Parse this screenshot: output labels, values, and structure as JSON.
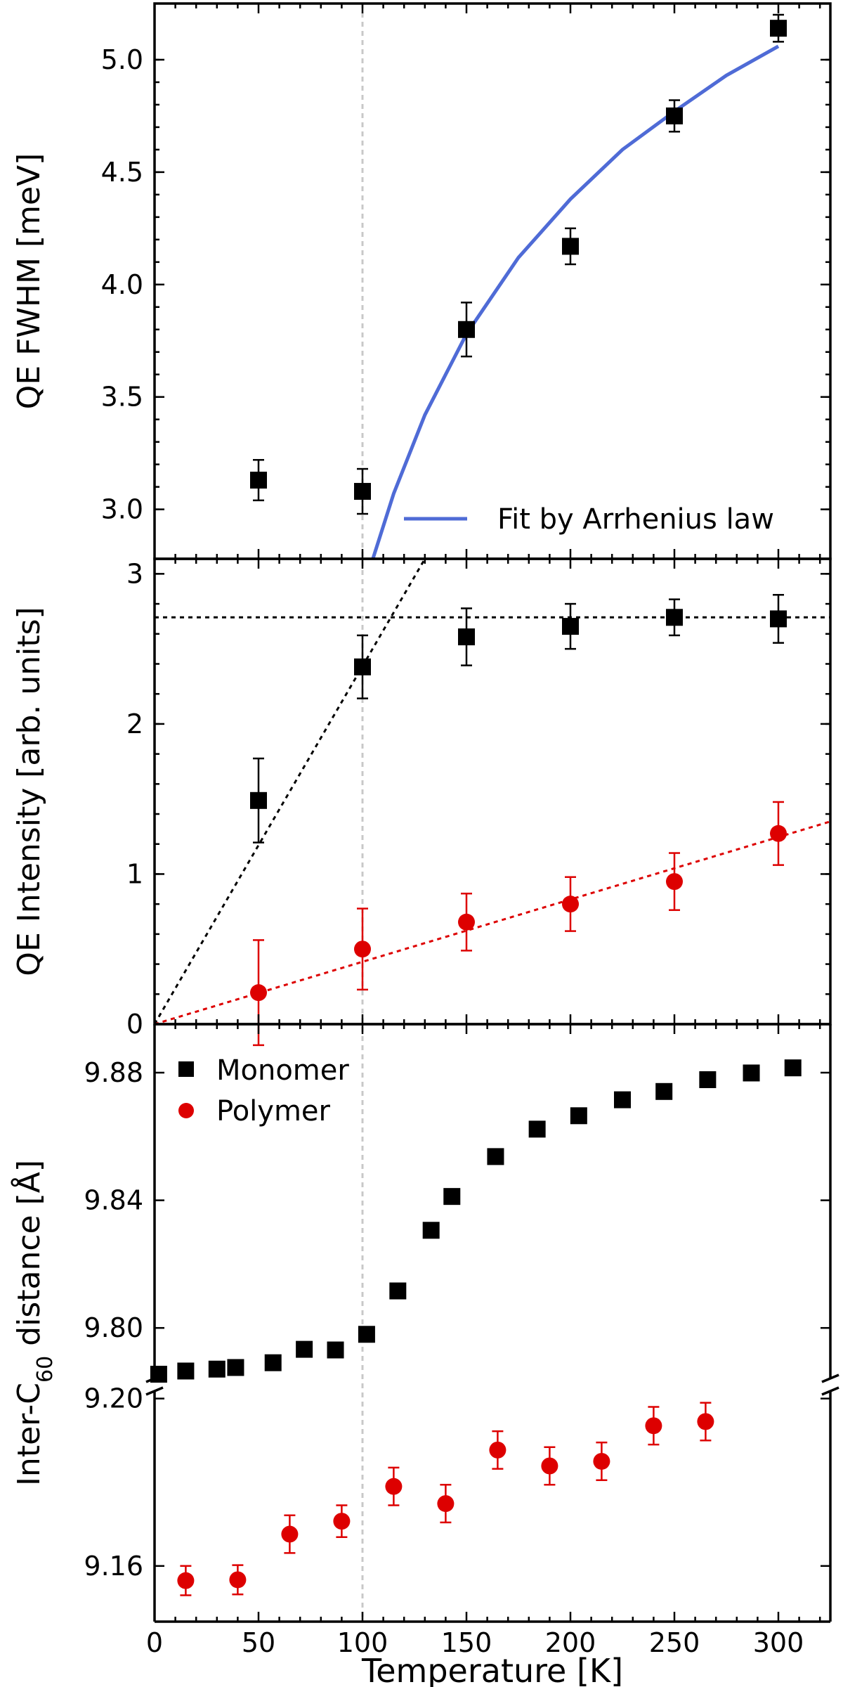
{
  "chart_data": [
    {
      "type": "scatter",
      "panel": "top",
      "ylabel": "QE FWHM [meV]",
      "ylim": [
        2.78,
        5.25
      ],
      "xlim": [
        0,
        325
      ],
      "yticks": [
        3.0,
        3.5,
        4.0,
        4.5,
        5.0
      ],
      "ytick_labels": [
        "3.0",
        "3.5",
        "4.0",
        "4.5",
        "5.0"
      ],
      "series": [
        {
          "marker": "square",
          "color": "#000000",
          "points": [
            {
              "x": 50,
              "y": 3.13,
              "err": 0.09
            },
            {
              "x": 100,
              "y": 3.08,
              "err": 0.1
            },
            {
              "x": 150,
              "y": 3.8,
              "err": 0.12
            },
            {
              "x": 200,
              "y": 4.17,
              "err": 0.08
            },
            {
              "x": 250,
              "y": 4.75,
              "err": 0.07
            },
            {
              "x": 300,
              "y": 5.14,
              "err": 0.06
            }
          ]
        }
      ],
      "fit": {
        "name": "Fit by Arrhenius law",
        "color": "#4f6bd6",
        "points": [
          [
            105,
            2.78
          ],
          [
            115,
            3.07
          ],
          [
            130,
            3.42
          ],
          [
            150,
            3.78
          ],
          [
            175,
            4.12
          ],
          [
            200,
            4.38
          ],
          [
            225,
            4.6
          ],
          [
            250,
            4.77
          ],
          [
            275,
            4.93
          ],
          [
            300,
            5.06
          ]
        ]
      },
      "legend_position": "bottom-right"
    },
    {
      "type": "scatter",
      "panel": "middle",
      "ylabel": "QE Intensity [arb. units]",
      "ylim": [
        0,
        3.1
      ],
      "xlim": [
        0,
        325
      ],
      "yticks": [
        0,
        1,
        2,
        3
      ],
      "ytick_labels": [
        "0",
        "1",
        "2",
        "3"
      ],
      "series": [
        {
          "marker": "square",
          "color": "#000000",
          "points": [
            {
              "x": 50,
              "y": 1.49,
              "err": 0.28
            },
            {
              "x": 100,
              "y": 2.38,
              "err": 0.21
            },
            {
              "x": 150,
              "y": 2.58,
              "err": 0.19
            },
            {
              "x": 200,
              "y": 2.65,
              "err": 0.15
            },
            {
              "x": 250,
              "y": 2.71,
              "err": 0.12
            },
            {
              "x": 300,
              "y": 2.7,
              "err": 0.16
            }
          ]
        },
        {
          "marker": "circle",
          "color": "#dd0000",
          "points": [
            {
              "x": 50,
              "y": 0.21,
              "err": 0.35
            },
            {
              "x": 100,
              "y": 0.5,
              "err": 0.27
            },
            {
              "x": 150,
              "y": 0.68,
              "err": 0.19
            },
            {
              "x": 200,
              "y": 0.8,
              "err": 0.18
            },
            {
              "x": 250,
              "y": 0.95,
              "err": 0.19
            },
            {
              "x": 300,
              "y": 1.27,
              "err": 0.21
            }
          ]
        }
      ],
      "guides": [
        {
          "color": "#000000",
          "from": [
            0,
            0
          ],
          "to": [
            130,
            3.1
          ]
        },
        {
          "color": "#000000",
          "from": [
            0,
            2.71
          ],
          "to": [
            325,
            2.71
          ]
        },
        {
          "color": "#dd0000",
          "from": [
            0,
            0
          ],
          "to": [
            325,
            1.35
          ]
        }
      ]
    },
    {
      "type": "scatter",
      "panel": "bottom",
      "broken_axis": true,
      "ylabel": "Inter-C60 distance [Å]",
      "ylabel_parts": [
        "Inter-C",
        "60",
        " distance [Å]"
      ],
      "xlabel": "Temperature [K]",
      "xlim": [
        0,
        325
      ],
      "xticks": [
        0,
        50,
        100,
        150,
        200,
        250,
        300
      ],
      "xtick_labels": [
        "0",
        "50",
        "100",
        "150",
        "200",
        "250",
        "300"
      ],
      "upper_segment": {
        "ylim": [
          9.7822,
          9.8952
        ],
        "yticks": [
          9.8,
          9.84,
          9.88
        ],
        "ytick_labels": [
          "9.80",
          "9.84",
          "9.88"
        ]
      },
      "lower_segment": {
        "ylim": [
          9.1467,
          9.2033
        ],
        "yticks": [
          9.16,
          9.2
        ],
        "ytick_labels": [
          "9.16",
          "9.20"
        ]
      },
      "series": [
        {
          "name": "Monomer",
          "marker": "square",
          "color": "#000000",
          "points": [
            {
              "x": 2,
              "y": 9.7855,
              "err": 0.0015
            },
            {
              "x": 15,
              "y": 9.7865,
              "err": 0.0015
            },
            {
              "x": 30,
              "y": 9.7871,
              "err": 0.0015
            },
            {
              "x": 39,
              "y": 9.7876,
              "err": 0.0022
            },
            {
              "x": 57,
              "y": 9.7891,
              "err": 0.0022
            },
            {
              "x": 72,
              "y": 9.7933,
              "err": 0.0022
            },
            {
              "x": 87,
              "y": 9.7931,
              "err": 0.0022
            },
            {
              "x": 102,
              "y": 9.798,
              "err": 0.0022
            },
            {
              "x": 117,
              "y": 9.8116,
              "err": 0.0022
            },
            {
              "x": 133,
              "y": 9.8306,
              "err": 0.0022
            },
            {
              "x": 143,
              "y": 9.8412,
              "err": 0.0022
            },
            {
              "x": 164,
              "y": 9.8537,
              "err": 0.0022
            },
            {
              "x": 184,
              "y": 9.8623,
              "err": 0.0022
            },
            {
              "x": 204,
              "y": 9.8665,
              "err": 0.0022
            },
            {
              "x": 225,
              "y": 9.8715,
              "err": 0.0022
            },
            {
              "x": 245,
              "y": 9.8741,
              "err": 0.0022
            },
            {
              "x": 266,
              "y": 9.8778,
              "err": 0.0022
            },
            {
              "x": 287,
              "y": 9.8799,
              "err": 0.0022
            },
            {
              "x": 307,
              "y": 9.8815,
              "err": 0.0022
            }
          ]
        },
        {
          "name": "Polymer",
          "marker": "circle",
          "color": "#dd0000",
          "points": [
            {
              "x": 15,
              "y": 9.1565,
              "err": 0.0035
            },
            {
              "x": 40,
              "y": 9.1567,
              "err": 0.0035
            },
            {
              "x": 65,
              "y": 9.1676,
              "err": 0.0045
            },
            {
              "x": 90,
              "y": 9.1707,
              "err": 0.0038
            },
            {
              "x": 115,
              "y": 9.179,
              "err": 0.0045
            },
            {
              "x": 140,
              "y": 9.1749,
              "err": 0.0045
            },
            {
              "x": 165,
              "y": 9.1877,
              "err": 0.0045
            },
            {
              "x": 190,
              "y": 9.1839,
              "err": 0.0045
            },
            {
              "x": 215,
              "y": 9.185,
              "err": 0.0045
            },
            {
              "x": 240,
              "y": 9.1935,
              "err": 0.0045
            },
            {
              "x": 265,
              "y": 9.1945,
              "err": 0.0045
            }
          ]
        }
      ],
      "legend_position": "top-left"
    }
  ],
  "vline": {
    "x": 100,
    "color": "#c8c8c8"
  }
}
